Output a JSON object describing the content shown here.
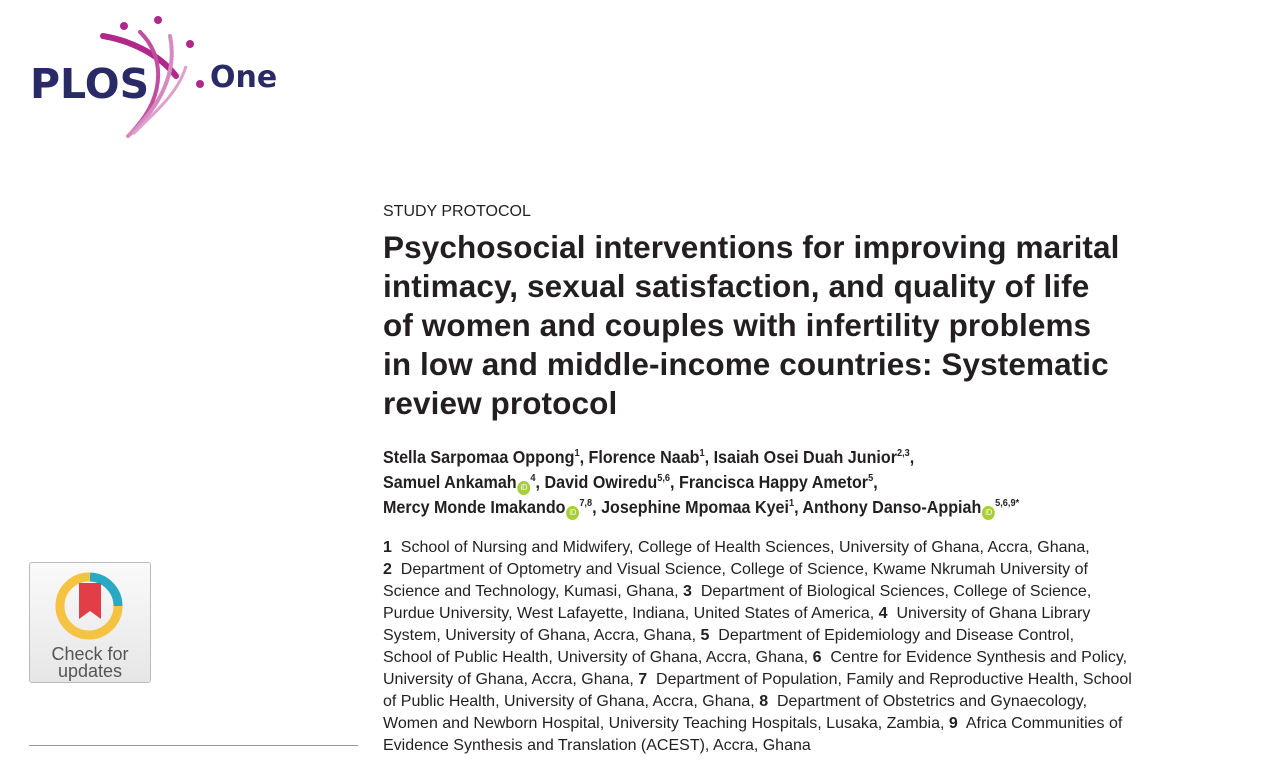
{
  "logo": {
    "brand": "PLOS",
    "journal": "One",
    "colors": {
      "text": "#2a2a66",
      "accent": "#b0288a",
      "accent_light": "#d68ac0"
    }
  },
  "badge": {
    "line1": "Check for",
    "line2": "updates"
  },
  "article": {
    "type": "STUDY PROTOCOL",
    "title_lines": [
      "Psychosocial interventions for improving marital",
      "intimacy, sexual satisfaction, and quality of life",
      "of women and couples with infertility problems",
      "in low and middle-income countries: Systematic",
      "review protocol"
    ],
    "author_lines": [
      [
        {
          "name": "Stella Sarpomaa Oppong",
          "sup": "1",
          "orcid": false,
          "sep": ", "
        },
        {
          "name": "Florence Naab",
          "sup": "1",
          "orcid": false,
          "sep": ", "
        },
        {
          "name": "Isaiah Osei Duah Junior",
          "sup": "2,3",
          "orcid": false,
          "sep": ","
        }
      ],
      [
        {
          "name": "Samuel Ankamah",
          "sup": "4",
          "orcid": true,
          "sep": ", "
        },
        {
          "name": "David Owiredu",
          "sup": "5,6",
          "orcid": false,
          "sep": ", "
        },
        {
          "name": "Francisca Happy Ametor",
          "sup": "5",
          "orcid": false,
          "sep": ","
        }
      ],
      [
        {
          "name": "Mercy Monde Imakando",
          "sup": "7,8",
          "orcid": true,
          "sep": ", "
        },
        {
          "name": "Josephine Mpomaa Kyei",
          "sup": "1",
          "orcid": false,
          "sep": ", "
        },
        {
          "name": "Anthony Danso-Appiah",
          "sup": "5,6,9*",
          "orcid": true,
          "sep": ""
        }
      ]
    ],
    "orcid_label": "iD",
    "affiliation_lines": [
      [
        {
          "b": "1"
        },
        {
          "t": "  School of Nursing and Midwifery, College of Health Sciences, University of Ghana, Accra, Ghana,"
        }
      ],
      [
        {
          "b": "2"
        },
        {
          "t": "  Department of Optometry and Visual Science, College of Science, Kwame Nkrumah University of"
        }
      ],
      [
        {
          "t": "Science and Technology, Kumasi, Ghana, "
        },
        {
          "b": "3"
        },
        {
          "t": "  Department of Biological Sciences, College of Science,"
        }
      ],
      [
        {
          "t": "Purdue University, West Lafayette, Indiana, United States of America, "
        },
        {
          "b": "4"
        },
        {
          "t": "  University of Ghana Library"
        }
      ],
      [
        {
          "t": "System, University of Ghana, Accra, Ghana, "
        },
        {
          "b": "5"
        },
        {
          "t": "  Department of Epidemiology and Disease Control,"
        }
      ],
      [
        {
          "t": "School of Public Health, University of Ghana, Accra, Ghana, "
        },
        {
          "b": "6"
        },
        {
          "t": "  Centre for Evidence Synthesis and Policy,"
        }
      ],
      [
        {
          "t": "University of Ghana, Accra, Ghana, "
        },
        {
          "b": "7"
        },
        {
          "t": "  Department of Population, Family and Reproductive Health, School"
        }
      ],
      [
        {
          "t": "of Public Health, University of Ghana, Accra, Ghana, "
        },
        {
          "b": "8"
        },
        {
          "t": "  Department of Obstetrics and Gynaecology,"
        }
      ],
      [
        {
          "t": "Women and Newborn Hospital, University Teaching Hospitals, Lusaka, Zambia, "
        },
        {
          "b": "9"
        },
        {
          "t": "  Africa Communities of"
        }
      ],
      [
        {
          "t": "Evidence Synthesis and Translation (ACEST), Accra, Ghana"
        }
      ]
    ]
  }
}
